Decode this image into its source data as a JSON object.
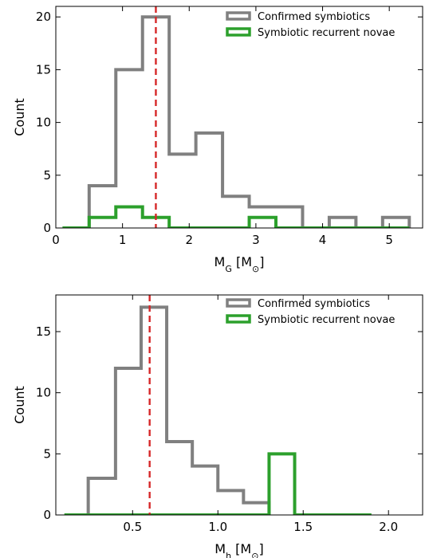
{
  "chart_data": [
    {
      "type": "histogram",
      "xlabel": "M",
      "xlabel_sub": "G",
      "xlabel_unit_open": " [M",
      "xlabel_unit_sub": "⊙",
      "xlabel_unit_close": "]",
      "ylabel": "Count",
      "xlim": [
        0,
        5.5
      ],
      "ylim": [
        0,
        21
      ],
      "xticks": [
        0,
        1,
        2,
        3,
        4,
        5
      ],
      "yticks": [
        0,
        5,
        10,
        15,
        20
      ],
      "vline": {
        "x": 1.5,
        "color": "#d62728",
        "style": "dashed"
      },
      "legend": {
        "position": "top-right"
      },
      "series": [
        {
          "name": "Confirmed symbiotics",
          "color": "#808080",
          "edges": [
            0.5,
            0.9,
            1.3,
            1.7,
            2.1,
            2.5,
            2.9,
            3.3,
            3.7,
            4.1,
            4.5,
            4.9,
            5.3
          ],
          "counts": [
            4,
            15,
            20,
            7,
            9,
            3,
            2,
            2,
            0,
            1,
            0,
            1
          ]
        },
        {
          "name": "Symbiotic recurrent novae",
          "color": "#2ca02c",
          "edges": [
            0.1,
            0.5,
            0.9,
            1.3,
            1.7,
            2.1,
            2.5,
            2.9,
            3.3,
            3.7,
            4.1,
            4.5,
            4.9,
            5.3
          ],
          "counts": [
            0,
            1,
            2,
            1,
            0,
            0,
            0,
            1,
            0,
            0,
            0,
            0,
            0
          ]
        }
      ]
    },
    {
      "type": "histogram",
      "xlabel": "M",
      "xlabel_sub": "h",
      "xlabel_unit_open": " [M",
      "xlabel_unit_sub": "⊙",
      "xlabel_unit_close": "]",
      "ylabel": "Count",
      "xlim": [
        0.05,
        2.2
      ],
      "ylim": [
        0,
        18
      ],
      "xticks": [
        0.5,
        1.0,
        1.5,
        2.0
      ],
      "xtick_labels": [
        "0.5",
        "1.0",
        "1.5",
        "2.0"
      ],
      "yticks": [
        0,
        5,
        10,
        15
      ],
      "vline": {
        "x": 0.6,
        "color": "#d62728",
        "style": "dashed"
      },
      "legend": {
        "position": "top-right"
      },
      "series": [
        {
          "name": "Confirmed symbiotics",
          "color": "#808080",
          "edges": [
            0.24,
            0.4,
            0.55,
            0.7,
            0.85,
            1.0,
            1.15,
            1.3
          ],
          "counts": [
            3,
            12,
            17,
            6,
            4,
            2,
            1
          ]
        },
        {
          "name": "Symbiotic recurrent novae",
          "color": "#2ca02c",
          "edges": [
            0.1,
            0.24,
            0.4,
            0.55,
            0.7,
            0.85,
            1.0,
            1.15,
            1.3,
            1.45,
            1.6,
            1.75,
            1.9
          ],
          "counts": [
            0,
            0,
            0,
            0,
            0,
            0,
            0,
            0,
            5,
            0,
            0,
            0
          ]
        }
      ]
    }
  ]
}
